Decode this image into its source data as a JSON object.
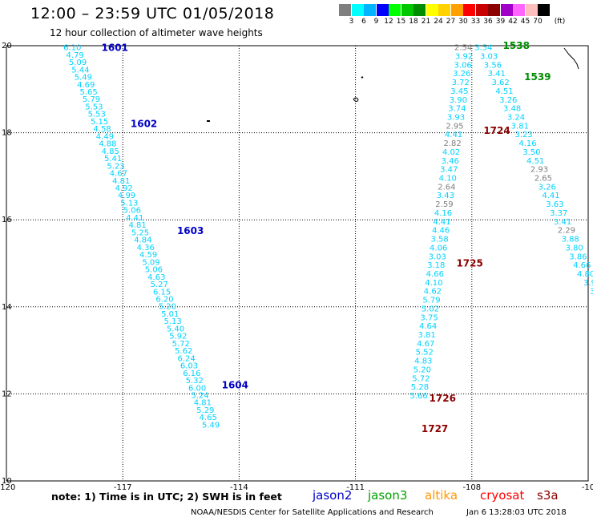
{
  "title": "12:00 – 23:59 UTC 01/05/2018",
  "subtitle": "12 hour collection of altimeter wave heights",
  "colorbar": {
    "unit": "(ft)",
    "ticks": [
      "3",
      "6",
      "9",
      "12",
      "15",
      "18",
      "21",
      "24",
      "27",
      "30",
      "33",
      "36",
      "39",
      "42",
      "45",
      "70"
    ],
    "colors": [
      "#7f7f7f",
      "#00ffff",
      "#00b4ff",
      "#0000ff",
      "#00ff00",
      "#00c800",
      "#008c00",
      "#ffff00",
      "#ffd200",
      "#ffa000",
      "#ff0000",
      "#c80000",
      "#8c0000",
      "#a000c8",
      "#ff64ff",
      "#ffbebe",
      "#000000"
    ]
  },
  "axes": {
    "lon_ticks": [
      "-120",
      "-117",
      "-114",
      "-111",
      "-108",
      "-10"
    ],
    "lat_ticks": [
      "20",
      "18",
      "16",
      "14",
      "12",
      "10"
    ]
  },
  "swh_colors": {
    "default": "#00d2ff",
    "low": "#7f7f7f"
  },
  "tracks": [
    {
      "id": "t1",
      "points": [
        {
          "lon": -118.3,
          "lat": 19.97,
          "v": "6.10"
        },
        {
          "lon": -118.23,
          "lat": 19.8,
          "v": "4.79"
        },
        {
          "lon": -118.16,
          "lat": 19.63,
          "v": "5.09"
        },
        {
          "lon": -118.09,
          "lat": 19.46,
          "v": "5.44"
        },
        {
          "lon": -118.02,
          "lat": 19.29,
          "v": "5.49"
        },
        {
          "lon": -117.95,
          "lat": 19.12,
          "v": "4.69"
        },
        {
          "lon": -117.88,
          "lat": 18.95,
          "v": "5.65"
        },
        {
          "lon": -117.81,
          "lat": 18.78,
          "v": "5.79"
        },
        {
          "lon": -117.74,
          "lat": 18.61,
          "v": "5.53"
        },
        {
          "lon": -117.67,
          "lat": 18.44,
          "v": "5.53"
        },
        {
          "lon": -117.6,
          "lat": 18.27,
          "v": "5.15"
        },
        {
          "lon": -117.53,
          "lat": 18.1,
          "v": "4.58"
        },
        {
          "lon": -117.46,
          "lat": 17.93,
          "v": "4.49"
        },
        {
          "lon": -117.39,
          "lat": 17.76,
          "v": "4.88"
        },
        {
          "lon": -117.32,
          "lat": 17.59,
          "v": "4.85"
        },
        {
          "lon": -117.25,
          "lat": 17.42,
          "v": "5.41"
        },
        {
          "lon": -117.18,
          "lat": 17.25,
          "v": "5.23"
        },
        {
          "lon": -117.11,
          "lat": 17.08,
          "v": "4.67"
        },
        {
          "lon": -117.04,
          "lat": 16.91,
          "v": "4.81"
        },
        {
          "lon": -116.97,
          "lat": 16.74,
          "v": "4.92"
        },
        {
          "lon": -116.9,
          "lat": 16.57,
          "v": "4.99"
        },
        {
          "lon": -116.83,
          "lat": 16.4,
          "v": "5.13"
        },
        {
          "lon": -116.76,
          "lat": 16.23,
          "v": "5.06"
        },
        {
          "lon": -116.69,
          "lat": 16.06,
          "v": "4.41"
        },
        {
          "lon": -116.62,
          "lat": 15.89,
          "v": "4.81"
        },
        {
          "lon": -116.55,
          "lat": 15.72,
          "v": "5.25"
        },
        {
          "lon": -116.48,
          "lat": 15.55,
          "v": "4.84"
        },
        {
          "lon": -116.41,
          "lat": 15.38,
          "v": "4.36"
        },
        {
          "lon": -116.34,
          "lat": 15.21,
          "v": "4.59"
        },
        {
          "lon": -116.27,
          "lat": 15.04,
          "v": "5.09"
        },
        {
          "lon": -116.2,
          "lat": 14.87,
          "v": "5.06"
        },
        {
          "lon": -116.13,
          "lat": 14.7,
          "v": "4.63"
        },
        {
          "lon": -116.06,
          "lat": 14.53,
          "v": "5.27"
        },
        {
          "lon": -115.99,
          "lat": 14.36,
          "v": "6.15"
        },
        {
          "lon": -115.92,
          "lat": 14.19,
          "v": "6.20"
        },
        {
          "lon": -115.85,
          "lat": 14.02,
          "v": "5.20"
        },
        {
          "lon": -115.78,
          "lat": 13.85,
          "v": "5.01"
        },
        {
          "lon": -115.71,
          "lat": 13.68,
          "v": "5.13"
        },
        {
          "lon": -115.64,
          "lat": 13.51,
          "v": "5.40"
        },
        {
          "lon": -115.57,
          "lat": 13.34,
          "v": "5.92"
        },
        {
          "lon": -115.5,
          "lat": 13.17,
          "v": "5.72"
        },
        {
          "lon": -115.43,
          "lat": 13.0,
          "v": "5.62"
        },
        {
          "lon": -115.36,
          "lat": 12.83,
          "v": "6.24"
        },
        {
          "lon": -115.29,
          "lat": 12.66,
          "v": "6.03"
        },
        {
          "lon": -115.22,
          "lat": 12.49,
          "v": "6.16"
        },
        {
          "lon": -115.15,
          "lat": 12.32,
          "v": "5.32"
        },
        {
          "lon": -115.08,
          "lat": 12.15,
          "v": "6.00"
        },
        {
          "lon": -115.01,
          "lat": 11.98,
          "v": "5.24"
        },
        {
          "lon": -114.94,
          "lat": 11.81,
          "v": "4.81"
        },
        {
          "lon": -114.87,
          "lat": 11.64,
          "v": "5.29"
        },
        {
          "lon": -114.8,
          "lat": 11.47,
          "v": "4.65"
        },
        {
          "lon": -114.73,
          "lat": 11.3,
          "v": "5.49"
        }
      ]
    },
    {
      "id": "t2",
      "points": [
        {
          "lon": -108.22,
          "lat": 19.97,
          "v": "2.54",
          "low": true
        },
        {
          "lon": -108.2,
          "lat": 19.77,
          "v": "3.92"
        },
        {
          "lon": -108.23,
          "lat": 19.57,
          "v": "3.06"
        },
        {
          "lon": -108.26,
          "lat": 19.37,
          "v": "3.26"
        },
        {
          "lon": -108.29,
          "lat": 19.17,
          "v": "3.72"
        },
        {
          "lon": -108.32,
          "lat": 18.97,
          "v": "3.45"
        },
        {
          "lon": -108.35,
          "lat": 18.77,
          "v": "3.90"
        },
        {
          "lon": -108.38,
          "lat": 18.57,
          "v": "3.74"
        },
        {
          "lon": -108.41,
          "lat": 18.37,
          "v": "3.93"
        },
        {
          "lon": -108.44,
          "lat": 18.17,
          "v": "2.95",
          "low": true
        },
        {
          "lon": -108.47,
          "lat": 17.97,
          "v": "4.41"
        },
        {
          "lon": -108.5,
          "lat": 17.77,
          "v": "2.82",
          "low": true
        },
        {
          "lon": -108.53,
          "lat": 17.57,
          "v": "4.02"
        },
        {
          "lon": -108.56,
          "lat": 17.37,
          "v": "3.46"
        },
        {
          "lon": -108.59,
          "lat": 17.17,
          "v": "3.47"
        },
        {
          "lon": -108.62,
          "lat": 16.97,
          "v": "4.10"
        },
        {
          "lon": -108.65,
          "lat": 16.77,
          "v": "2.64",
          "low": true
        },
        {
          "lon": -108.68,
          "lat": 16.57,
          "v": "3.43"
        },
        {
          "lon": -108.71,
          "lat": 16.37,
          "v": "2.59",
          "low": true
        },
        {
          "lon": -108.74,
          "lat": 16.17,
          "v": "4.16"
        },
        {
          "lon": -108.77,
          "lat": 15.97,
          "v": "4.41"
        },
        {
          "lon": -108.8,
          "lat": 15.77,
          "v": "4.46"
        },
        {
          "lon": -108.83,
          "lat": 15.57,
          "v": "3.58"
        },
        {
          "lon": -108.86,
          "lat": 15.37,
          "v": "4.06"
        },
        {
          "lon": -108.89,
          "lat": 15.17,
          "v": "3.03"
        },
        {
          "lon": -108.92,
          "lat": 14.97,
          "v": "3.18"
        },
        {
          "lon": -108.95,
          "lat": 14.77,
          "v": "4.66"
        },
        {
          "lon": -108.98,
          "lat": 14.57,
          "v": "4.10"
        },
        {
          "lon": -109.01,
          "lat": 14.37,
          "v": "4.62"
        },
        {
          "lon": -109.04,
          "lat": 14.17,
          "v": "5.79"
        },
        {
          "lon": -109.07,
          "lat": 13.97,
          "v": "5.02"
        },
        {
          "lon": -109.1,
          "lat": 13.77,
          "v": "3.75"
        },
        {
          "lon": -109.13,
          "lat": 13.57,
          "v": "4.64"
        },
        {
          "lon": -109.16,
          "lat": 13.37,
          "v": "3.81"
        },
        {
          "lon": -109.19,
          "lat": 13.17,
          "v": "4.67"
        },
        {
          "lon": -109.22,
          "lat": 12.97,
          "v": "5.52"
        },
        {
          "lon": -109.25,
          "lat": 12.77,
          "v": "4.83"
        },
        {
          "lon": -109.28,
          "lat": 12.57,
          "v": "5.20"
        },
        {
          "lon": -109.31,
          "lat": 12.37,
          "v": "5.72"
        },
        {
          "lon": -109.34,
          "lat": 12.17,
          "v": "5.28"
        },
        {
          "lon": -109.37,
          "lat": 11.97,
          "v": "5.66"
        }
      ]
    },
    {
      "id": "t3",
      "points": [
        {
          "lon": -107.7,
          "lat": 19.97,
          "v": "3.54"
        },
        {
          "lon": -107.56,
          "lat": 19.77,
          "v": "3.03"
        },
        {
          "lon": -107.46,
          "lat": 19.57,
          "v": "3.56"
        },
        {
          "lon": -107.36,
          "lat": 19.37,
          "v": "3.41"
        },
        {
          "lon": -107.26,
          "lat": 19.17,
          "v": "3.62"
        },
        {
          "lon": -107.16,
          "lat": 18.97,
          "v": "4.51"
        },
        {
          "lon": -107.06,
          "lat": 18.77,
          "v": "3.26"
        },
        {
          "lon": -106.96,
          "lat": 18.57,
          "v": "3.48"
        },
        {
          "lon": -106.86,
          "lat": 18.37,
          "v": "3.24"
        },
        {
          "lon": -106.76,
          "lat": 18.17,
          "v": "3.81"
        },
        {
          "lon": -106.66,
          "lat": 17.97,
          "v": "3.23"
        },
        {
          "lon": -106.56,
          "lat": 17.77,
          "v": "4.16"
        },
        {
          "lon": -106.46,
          "lat": 17.57,
          "v": "3.50"
        },
        {
          "lon": -106.36,
          "lat": 17.37,
          "v": "4.51"
        },
        {
          "lon": -106.26,
          "lat": 17.17,
          "v": "2.93",
          "low": true
        },
        {
          "lon": -106.16,
          "lat": 16.97,
          "v": "2.65",
          "low": true
        },
        {
          "lon": -106.06,
          "lat": 16.77,
          "v": "3.26"
        },
        {
          "lon": -105.96,
          "lat": 16.57,
          "v": "4.41"
        },
        {
          "lon": -105.86,
          "lat": 16.37,
          "v": "3.63"
        },
        {
          "lon": -105.76,
          "lat": 16.17,
          "v": "3.37"
        },
        {
          "lon": -105.66,
          "lat": 15.97,
          "v": "3.41"
        },
        {
          "lon": -105.56,
          "lat": 15.77,
          "v": "2.29",
          "low": true
        },
        {
          "lon": -105.46,
          "lat": 15.57,
          "v": "3.88"
        },
        {
          "lon": -105.36,
          "lat": 15.37,
          "v": "3.80"
        },
        {
          "lon": -105.26,
          "lat": 15.17,
          "v": "3.86"
        },
        {
          "lon": -105.16,
          "lat": 14.97,
          "v": "4.66"
        },
        {
          "lon": -105.06,
          "lat": 14.77,
          "v": "4.80"
        },
        {
          "lon": -104.96,
          "lat": 14.57,
          "v": "3.9"
        },
        {
          "lon": -104.86,
          "lat": 14.37,
          "v": "3."
        },
        {
          "lon": -104.76,
          "lat": 14.17,
          "v": "3."
        },
        {
          "lon": -104.66,
          "lat": 13.97,
          "v": "3"
        }
      ]
    }
  ],
  "passes": [
    {
      "text": "1601",
      "color": "#0000c8",
      "lon": -117.55,
      "lat": 19.95
    },
    {
      "text": "1602",
      "color": "#0000c8",
      "lon": -116.8,
      "lat": 18.2
    },
    {
      "text": "1603",
      "color": "#0000c8",
      "lon": -115.6,
      "lat": 15.75
    },
    {
      "text": "1604",
      "color": "#0000c8",
      "lon": -114.45,
      "lat": 12.2
    },
    {
      "text": "1724",
      "color": "#8c0000",
      "lon": -107.7,
      "lat": 18.05
    },
    {
      "text": "1725",
      "color": "#8c0000",
      "lon": -108.4,
      "lat": 15.0
    },
    {
      "text": "1726",
      "color": "#8c0000",
      "lon": -109.1,
      "lat": 11.9
    },
    {
      "text": "1727",
      "color": "#8c0000",
      "lon": -109.3,
      "lat": 11.2
    },
    {
      "text": "1538",
      "color": "#008c00",
      "lon": -107.2,
      "lat": 20.0
    },
    {
      "text": "1539",
      "color": "#008c00",
      "lon": -106.65,
      "lat": 19.28
    }
  ],
  "note": "note:  1) Time is in UTC;  2) SWH is in feet",
  "satellites": [
    {
      "name": "jason2",
      "color": "#0000c8"
    },
    {
      "name": "jason3",
      "color": "#00a000"
    },
    {
      "name": "altika",
      "color": "#ff9600"
    },
    {
      "name": "cryosat",
      "color": "#ff0000"
    },
    {
      "name": "s3a",
      "color": "#8c0000"
    }
  ],
  "credit": "NOAA/NESDIS Center for Satellite Applications and Research",
  "timestamp": "Jan  6 13:28:03 UTC 2018"
}
